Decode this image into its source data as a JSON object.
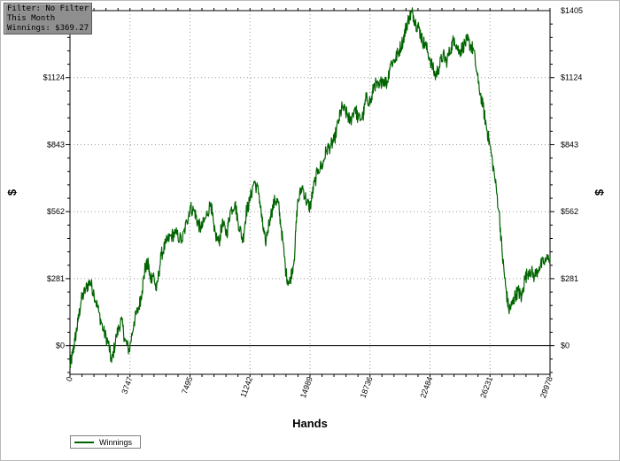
{
  "info": {
    "filter": "Filter: No Filter",
    "period": "This Month",
    "winnings": "Winnings: $369.27"
  },
  "chart_data": {
    "type": "line",
    "xlabel": "Hands",
    "ylabel": "$",
    "x_ticks": [
      0,
      3747,
      7495,
      11242,
      14989,
      18736,
      22484,
      26231,
      29978
    ],
    "y_ticks": [
      0,
      281,
      562,
      843,
      1124,
      1405
    ],
    "y_tick_labels": [
      "$0",
      "$281",
      "$562",
      "$843",
      "$1124",
      "$1405"
    ],
    "xlim": [
      0,
      29978
    ],
    "ylim": [
      -120,
      1405
    ],
    "grid": true,
    "legend_position": "bottom-left",
    "line_color": "#006400",
    "series": [
      {
        "name": "Winnings",
        "x": [
          0,
          150,
          300,
          500,
          700,
          1000,
          1250,
          1500,
          1800,
          2100,
          2400,
          2600,
          2900,
          3200,
          3450,
          3700,
          4000,
          4300,
          4500,
          4700,
          4900,
          5000,
          5200,
          5400,
          5700,
          6000,
          6300,
          6600,
          7000,
          7300,
          7500,
          7800,
          8000,
          8200,
          8500,
          8800,
          9000,
          9300,
          9500,
          9800,
          10000,
          10300,
          10500,
          10800,
          11000,
          11200,
          11500,
          11800,
          12000,
          12200,
          12500,
          12800,
          13000,
          13200,
          13500,
          13700,
          14000,
          14200,
          14500,
          14800,
          15000,
          15200,
          15500,
          15800,
          16000,
          16300,
          16500,
          16800,
          17000,
          17300,
          17500,
          17800,
          18000,
          18300,
          18500,
          18800,
          19000,
          19300,
          19500,
          19800,
          20000,
          20300,
          20500,
          20800,
          21000,
          21200,
          21400,
          21600,
          21800,
          22000,
          22200,
          22500,
          22800,
          23000,
          23300,
          23500,
          23800,
          24000,
          24300,
          24500,
          24800,
          25000,
          25200,
          25500,
          25800,
          26000,
          26200,
          26500,
          26800,
          27000,
          27200,
          27400,
          27600,
          27800,
          28000,
          28200,
          28400,
          28700,
          29000,
          29300,
          29600,
          29978
        ],
        "y": [
          -90,
          -40,
          20,
          100,
          190,
          240,
          270,
          220,
          140,
          60,
          10,
          -70,
          40,
          110,
          20,
          -20,
          100,
          160,
          230,
          330,
          340,
          280,
          300,
          230,
          380,
          430,
          460,
          470,
          440,
          520,
          580,
          560,
          510,
          490,
          540,
          600,
          480,
          430,
          510,
          470,
          560,
          600,
          520,
          440,
          560,
          600,
          690,
          640,
          520,
          430,
          540,
          610,
          600,
          490,
          300,
          260,
          360,
          590,
          670,
          600,
          580,
          660,
          740,
          760,
          820,
          840,
          860,
          950,
          1000,
          970,
          940,
          1000,
          950,
          960,
          1040,
          1020,
          1100,
          1080,
          1120,
          1100,
          1180,
          1200,
          1230,
          1280,
          1340,
          1380,
          1395,
          1350,
          1330,
          1280,
          1260,
          1200,
          1130,
          1160,
          1220,
          1190,
          1250,
          1290,
          1230,
          1250,
          1280,
          1260,
          1240,
          1100,
          1000,
          920,
          850,
          720,
          560,
          380,
          250,
          150,
          170,
          210,
          230,
          200,
          280,
          320,
          290,
          330,
          350,
          369
        ]
      }
    ]
  }
}
